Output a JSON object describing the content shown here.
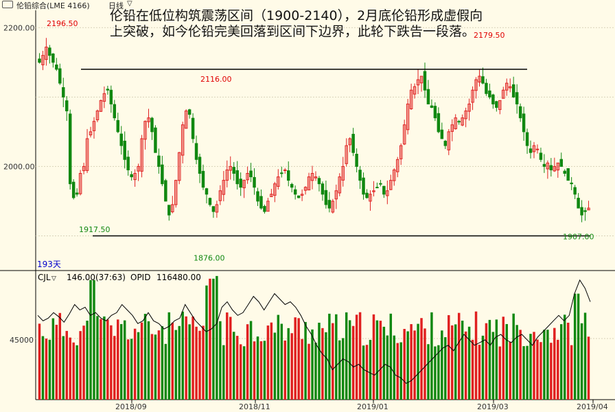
{
  "window": {
    "symbol_title": "伦铅综合(LME 4166)",
    "period_label": "日线"
  },
  "annotation": "伦铅在低位构筑震荡区间（1900-2140），2月底伦铅形成虚假向上突破，如今伦铅完美回落到区间下边界，此轮下跌告一段落。",
  "colors": {
    "background": "#fffbe8",
    "up": "#e02020",
    "down": "#118811",
    "price_label_high": "#e00000",
    "price_label_low": "#118811",
    "period_label": "#0000cc",
    "line": "#000000"
  },
  "chart_data": [
    {
      "type": "candlestick",
      "ylim": [
        1850,
        2225
      ],
      "yticks": [
        "2200.00",
        "2000.00"
      ],
      "xticks": [
        "2018/09",
        "2018/11",
        "2019/01",
        "2019/03",
        "2019/04"
      ],
      "period_count": "193天",
      "annotations": [
        {
          "label": "2196.50",
          "value": 2196.5,
          "kind": "high"
        },
        {
          "label": "2116.00",
          "value": 2116.0,
          "kind": "high"
        },
        {
          "label": "2179.50",
          "value": 2179.5,
          "kind": "high"
        },
        {
          "label": "1917.50",
          "value": 1917.5,
          "kind": "low"
        },
        {
          "label": "1876.00",
          "value": 1876.0,
          "kind": "low"
        },
        {
          "label": "1907.00",
          "value": 1907.0,
          "kind": "low"
        }
      ],
      "lines": [
        {
          "name": "resistance",
          "value": 2140
        },
        {
          "name": "support",
          "value": 1900
        }
      ],
      "close_path": [
        2150,
        2160,
        2172,
        2160,
        2150,
        2140,
        2120,
        2100,
        2080,
        1975,
        1955,
        1960,
        1990,
        2000,
        2040,
        2050,
        2065,
        2080,
        2095,
        2105,
        2110,
        2090,
        2070,
        2050,
        2030,
        2010,
        1995,
        1985,
        1990,
        2000,
        2040,
        2065,
        2070,
        2050,
        2020,
        2000,
        1975,
        1950,
        1930,
        1945,
        1980,
        2020,
        2060,
        2080,
        2075,
        2040,
        2010,
        1990,
        1970,
        1960,
        1945,
        1935,
        1945,
        1965,
        1980,
        1995,
        2000,
        1990,
        1975,
        1970,
        1980,
        1990,
        1985,
        1970,
        1950,
        1940,
        1935,
        1950,
        1960,
        1975,
        1985,
        1990,
        1995,
        1980,
        1970,
        1960,
        1955,
        1960,
        1970,
        1985,
        1990,
        1985,
        1975,
        1960,
        1945,
        1940,
        1950,
        1965,
        1985,
        2000,
        2030,
        2040,
        2020,
        2000,
        1980,
        1960,
        1955,
        1960,
        1965,
        1970,
        1975,
        1960,
        1965,
        1980,
        1995,
        2010,
        2030,
        2060,
        2090,
        2110,
        2115,
        2125,
        2130,
        2110,
        2090,
        2085,
        2070,
        2050,
        2040,
        2030,
        2050,
        2060,
        2070,
        2065,
        2070,
        2080,
        2090,
        2110,
        2125,
        2130,
        2120,
        2105,
        2100,
        2090,
        2085,
        2095,
        2110,
        2120,
        2115,
        2100,
        2090,
        2070,
        2050,
        2030,
        2020,
        2030,
        2025,
        2010,
        2000,
        2005,
        1995,
        2000,
        2005,
        2000,
        1990,
        1980,
        1975,
        1960,
        1940,
        1930,
        1935,
        1940
      ],
      "wick_spread": 15
    },
    {
      "type": "bar+line",
      "label": "CJL",
      "summary": "146.00(37:63)",
      "opid_label": "OPID",
      "opid_value": "116480.00",
      "ytick": "45000",
      "volume_ylim": [
        0,
        95000
      ],
      "volume_base": 52000,
      "volume_spikes": [
        {
          "at": 0.094,
          "value": 88000
        },
        {
          "at": 0.305,
          "value": 84000
        },
        {
          "at": 0.313,
          "value": 89000
        },
        {
          "at": 0.321,
          "value": 91000
        },
        {
          "at": 0.973,
          "value": 78000
        }
      ],
      "oi_path": [
        62000,
        58000,
        60000,
        64000,
        61000,
        57000,
        63000,
        70000,
        66000,
        68000,
        62000,
        64000,
        60000,
        58000,
        62000,
        64000,
        70000,
        66000,
        62000,
        56000,
        58000,
        64000,
        58000,
        56000,
        52000,
        54000,
        58000,
        60000,
        70000,
        64000,
        58000,
        54000,
        50000,
        52000,
        56000,
        68000,
        72000,
        66000,
        62000,
        64000,
        70000,
        76000,
        72000,
        66000,
        72000,
        78000,
        74000,
        70000,
        72000,
        68000,
        62000,
        54000,
        48000,
        40000,
        34000,
        30000,
        22000,
        26000,
        30000,
        28000,
        24000,
        26000,
        22000,
        20000,
        18000,
        22000,
        26000,
        24000,
        18000,
        16000,
        12000,
        14000,
        18000,
        22000,
        26000,
        30000,
        34000,
        38000,
        40000,
        36000,
        42000,
        48000,
        44000,
        40000,
        42000,
        44000,
        40000,
        46000,
        48000,
        44000,
        42000,
        46000,
        48000,
        44000,
        40000,
        46000,
        50000,
        54000,
        58000,
        62000,
        58000,
        62000,
        78000,
        88000,
        82000,
        72000
      ]
    }
  ]
}
